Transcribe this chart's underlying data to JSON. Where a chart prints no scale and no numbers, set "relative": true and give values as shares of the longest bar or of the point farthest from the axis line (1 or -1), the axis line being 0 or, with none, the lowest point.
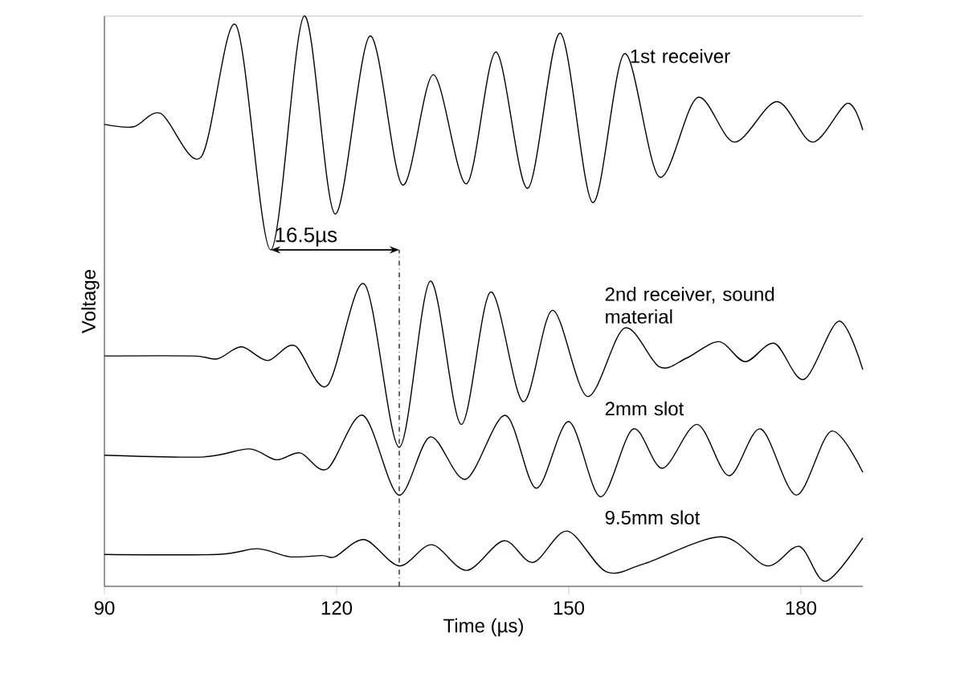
{
  "chart_data": {
    "type": "line",
    "relative": true,
    "xlabel": "Time (µs)",
    "ylabel": "Voltage",
    "xlim": [
      90,
      188
    ],
    "xticks": [
      90,
      120,
      150,
      180
    ],
    "marker": "none",
    "line_style": "solid",
    "series": [
      {
        "name": "1st receiver",
        "color": "#000000",
        "x": [
          90,
          93.8,
          97.3,
          102.5,
          107.0,
          111.5,
          115.8,
          119.8,
          124.3,
          128.5,
          132.5,
          136.8,
          140.6,
          144.7,
          148.9,
          153.1,
          157.2,
          161.7,
          166.6,
          171.4,
          176.9,
          181.5,
          186.0,
          188.0
        ],
        "values": [
          0.81,
          0.806,
          0.829,
          0.753,
          0.984,
          0.59,
          1.0,
          0.653,
          0.965,
          0.704,
          0.897,
          0.706,
          0.937,
          0.698,
          0.97,
          0.673,
          0.934,
          0.718,
          0.857,
          0.779,
          0.85,
          0.779,
          0.847,
          0.8
        ]
      },
      {
        "name": "2nd receiver, sound material",
        "color": "#000000",
        "x": [
          90,
          101.4,
          104.6,
          107.7,
          111.1,
          114.6,
          118.8,
          123.6,
          128.1,
          132.1,
          136.1,
          139.9,
          144.1,
          147.9,
          152.4,
          157.2,
          161.7,
          165.2,
          169.4,
          172.8,
          176.6,
          180.4,
          184.9,
          188.0
        ],
        "values": [
          0.404,
          0.404,
          0.399,
          0.42,
          0.396,
          0.422,
          0.352,
          0.53,
          0.244,
          0.535,
          0.284,
          0.516,
          0.324,
          0.484,
          0.333,
          0.453,
          0.385,
          0.4,
          0.429,
          0.394,
          0.426,
          0.363,
          0.465,
          0.38
        ]
      },
      {
        "name": "2mm slot",
        "color": "#000000",
        "x": [
          90,
          102.8,
          108.7,
          112.2,
          115.3,
          118.8,
          123.4,
          128.0,
          132.1,
          136.7,
          141.8,
          145.8,
          150.0,
          154.1,
          158.3,
          162.1,
          166.6,
          170.7,
          174.8,
          179.4,
          183.9,
          188.0
        ],
        "values": [
          0.23,
          0.227,
          0.241,
          0.222,
          0.234,
          0.206,
          0.3,
          0.16,
          0.262,
          0.188,
          0.3,
          0.172,
          0.289,
          0.157,
          0.276,
          0.207,
          0.284,
          0.194,
          0.276,
          0.16,
          0.272,
          0.2
        ]
      },
      {
        "name": "9.5mm slot",
        "color": "#000000",
        "x": [
          90,
          104.6,
          109.8,
          113.9,
          118.1,
          119.8,
          123.6,
          128.1,
          132.3,
          136.8,
          141.6,
          145.4,
          149.8,
          154.8,
          159.6,
          169.7,
          175.6,
          179.8,
          183.2,
          188.0
        ],
        "values": [
          0.056,
          0.056,
          0.066,
          0.052,
          0.054,
          0.052,
          0.082,
          0.036,
          0.073,
          0.028,
          0.08,
          0.042,
          0.097,
          0.026,
          0.039,
          0.087,
          0.036,
          0.07,
          0.009,
          0.085
        ]
      }
    ],
    "ref_lines": [
      {
        "axis": "x",
        "value": 128.1,
        "line_style": "dashdot"
      }
    ],
    "annotations": [
      {
        "text": "16.5µs",
        "x": 111.5,
        "y": 0.59
      }
    ]
  }
}
